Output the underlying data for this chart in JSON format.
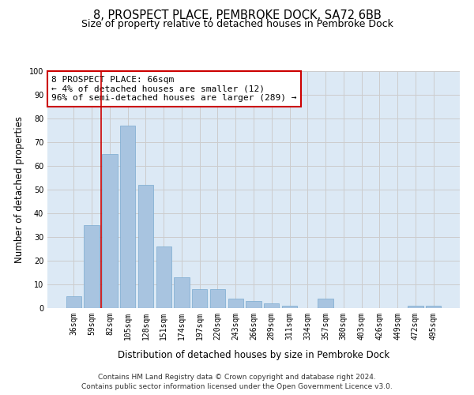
{
  "title_line1": "8, PROSPECT PLACE, PEMBROKE DOCK, SA72 6BB",
  "title_line2": "Size of property relative to detached houses in Pembroke Dock",
  "xlabel": "Distribution of detached houses by size in Pembroke Dock",
  "ylabel": "Number of detached properties",
  "categories": [
    "36sqm",
    "59sqm",
    "82sqm",
    "105sqm",
    "128sqm",
    "151sqm",
    "174sqm",
    "197sqm",
    "220sqm",
    "243sqm",
    "266sqm",
    "289sqm",
    "311sqm",
    "334sqm",
    "357sqm",
    "380sqm",
    "403sqm",
    "426sqm",
    "449sqm",
    "472sqm",
    "495sqm"
  ],
  "values": [
    5,
    35,
    65,
    77,
    52,
    26,
    13,
    8,
    8,
    4,
    3,
    2,
    1,
    0,
    4,
    0,
    0,
    0,
    0,
    1,
    1
  ],
  "bar_color": "#a8c4e0",
  "bar_edgecolor": "#7aaad0",
  "vline_x": 1.5,
  "vline_color": "#cc0000",
  "annotation_text": "8 PROSPECT PLACE: 66sqm\n← 4% of detached houses are smaller (12)\n96% of semi-detached houses are larger (289) →",
  "annotation_box_edgecolor": "#cc0000",
  "annotation_box_facecolor": "#ffffff",
  "ylim": [
    0,
    100
  ],
  "yticks": [
    0,
    10,
    20,
    30,
    40,
    50,
    60,
    70,
    80,
    90,
    100
  ],
  "grid_color": "#cccccc",
  "bg_color": "#dce9f5",
  "footer_line1": "Contains HM Land Registry data © Crown copyright and database right 2024.",
  "footer_line2": "Contains public sector information licensed under the Open Government Licence v3.0.",
  "title_fontsize": 10.5,
  "subtitle_fontsize": 9,
  "axis_label_fontsize": 8.5,
  "tick_fontsize": 7,
  "annotation_fontsize": 8,
  "footer_fontsize": 6.5
}
